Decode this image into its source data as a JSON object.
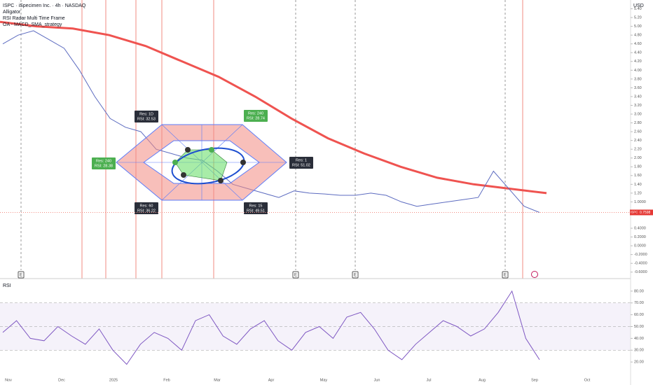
{
  "header": {
    "title": "ISPC · iSpecimen Inc. · 4h · NASDAQ",
    "indicators": [
      "Alligator",
      "RSI Radar Multi Time Frame",
      "OA - MACD_SMA_strategy"
    ]
  },
  "price_axis": {
    "unit": "USD",
    "ylim": [
      -0.7,
      5.6
    ],
    "ticks": [
      {
        "value": 5.4,
        "label": "5.40"
      },
      {
        "value": 5.2,
        "label": "5.20"
      },
      {
        "value": 5,
        "label": "5.00"
      },
      {
        "value": 4.8,
        "label": "4.80"
      },
      {
        "value": 4.6,
        "label": "4.60"
      },
      {
        "value": 4.4,
        "label": "4.40"
      },
      {
        "value": 4.2,
        "label": "4.20"
      },
      {
        "value": 4,
        "label": "4.00"
      },
      {
        "value": 3.8,
        "label": "3.80"
      },
      {
        "value": 3.6,
        "label": "3.60"
      },
      {
        "value": 3.4,
        "label": "3.40"
      },
      {
        "value": 3.2,
        "label": "3.20"
      },
      {
        "value": 3,
        "label": "3.00"
      },
      {
        "value": 2.8,
        "label": "2.80"
      },
      {
        "value": 2.6,
        "label": "2.60"
      },
      {
        "value": 2.4,
        "label": "2.40"
      },
      {
        "value": 2.2,
        "label": "2.20"
      },
      {
        "value": 2,
        "label": "2.00"
      },
      {
        "value": 1.8,
        "label": "1.80"
      },
      {
        "value": 1.6,
        "label": "1.60"
      },
      {
        "value": 1.4,
        "label": "1.40"
      },
      {
        "value": 1.2,
        "label": "1.20"
      },
      {
        "value": 1,
        "label": "1.0000"
      },
      {
        "value": 0.4,
        "label": "0.4000"
      },
      {
        "value": 0.2,
        "label": "0.2000"
      },
      {
        "value": 0,
        "label": "0.0000"
      },
      {
        "value": -0.2,
        "label": "-0.2000"
      },
      {
        "value": -0.4,
        "label": "-0.4000"
      },
      {
        "value": -0.6,
        "label": "-0.6000"
      }
    ],
    "last_price": {
      "symbol": "ISPC",
      "value": 0.7598
    }
  },
  "price_line": {
    "values": [
      4.6,
      4.8,
      4.9,
      4.7,
      4.5,
      4.0,
      3.4,
      2.9,
      2.7,
      2.6,
      2.2,
      2.1,
      2.0,
      1.95,
      1.7,
      1.4,
      1.3,
      1.2,
      1.1,
      1.25,
      1.2,
      1.18,
      1.15,
      1.15,
      1.2,
      1.15,
      1.0,
      0.9,
      0.95,
      1.0,
      1.05,
      1.1,
      1.7,
      1.3,
      0.9,
      0.76
    ]
  },
  "sma_line": {
    "values": [
      5.1,
      5.0,
      4.95,
      4.8,
      4.55,
      4.2,
      3.85,
      3.4,
      2.9,
      2.45,
      2.1,
      1.8,
      1.55,
      1.4,
      1.3,
      1.2
    ]
  },
  "radar": {
    "labels": [
      {
        "res": "Res: 1D",
        "rsi": "RSI: 32.53"
      },
      {
        "res": "Res: 240",
        "rsi": "RSI: 28.74"
      },
      {
        "res": "Res: 240",
        "rsi": "RSI: 28.38"
      },
      {
        "res": "Res: 1",
        "rsi": "RSI: 51.02"
      },
      {
        "res": "Res: 60",
        "rsi": "RSI: 36.22"
      },
      {
        "res": "Res: 15",
        "rsi": "RSI: 49.51"
      }
    ]
  },
  "events": [
    "E",
    "E",
    "E",
    "E"
  ],
  "rsi_pane": {
    "title": "RSI",
    "ylim": [
      10,
      90
    ],
    "ticks": [
      {
        "value": 80,
        "label": "80.00"
      },
      {
        "value": 70,
        "label": "70.00"
      },
      {
        "value": 60,
        "label": "60.00"
      },
      {
        "value": 50,
        "label": "50.00"
      },
      {
        "value": 40,
        "label": "40.00"
      },
      {
        "value": 30,
        "label": "30.00"
      },
      {
        "value": 20,
        "label": "20.00"
      }
    ],
    "values": [
      45,
      55,
      40,
      38,
      50,
      42,
      35,
      48,
      30,
      18,
      35,
      45,
      40,
      30,
      55,
      60,
      42,
      35,
      48,
      55,
      38,
      30,
      45,
      50,
      40,
      58,
      62,
      48,
      30,
      22,
      35,
      45,
      55,
      50,
      42,
      48,
      62,
      80,
      40,
      22
    ]
  },
  "x_axis": {
    "labels": [
      "Nov",
      "Dec",
      "2025",
      "Feb",
      "Mar",
      "Apr",
      "May",
      "Jun",
      "Jul",
      "Aug",
      "Sep",
      "Oct"
    ]
  }
}
